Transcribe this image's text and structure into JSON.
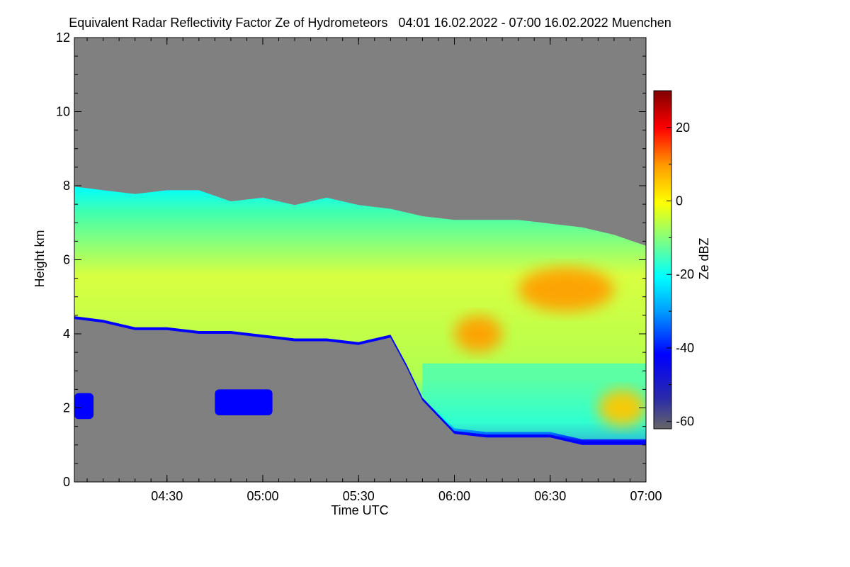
{
  "chart_data": {
    "type": "heatmap",
    "title": "Equivalent Radar Reflectivity Factor Ze of Hydrometeors   04:01 16.02.2022 - 07:00 16.02.2022 Muenchen",
    "xlabel": "Time UTC",
    "ylabel": "Height km",
    "colorbar_label": "Ze dBZ",
    "x_range": [
      "04:01",
      "07:00"
    ],
    "ylim": [
      0,
      12
    ],
    "colorbar_range": [
      -62,
      30
    ],
    "x_ticks": [
      "04:30",
      "05:00",
      "05:30",
      "06:00",
      "06:30",
      "07:00"
    ],
    "y_ticks": [
      0,
      2,
      4,
      6,
      8,
      10,
      12
    ],
    "colorbar_ticks": [
      -60,
      -40,
      -20,
      0,
      20
    ],
    "background_color": "#808080",
    "colormap": [
      "#666666",
      "#0000ff",
      "#00ffff",
      "#ffff00",
      "#ff7f00",
      "#ff0000",
      "#800000"
    ],
    "main_layer": {
      "time": [
        "04:01",
        "04:10",
        "04:20",
        "04:30",
        "04:40",
        "04:50",
        "05:00",
        "05:10",
        "05:20",
        "05:30",
        "05:40",
        "05:45",
        "05:50",
        "06:00",
        "06:10",
        "06:20",
        "06:30",
        "06:40",
        "06:50",
        "07:00"
      ],
      "top_km": [
        7.9,
        7.8,
        7.7,
        7.8,
        7.8,
        7.5,
        7.6,
        7.4,
        7.6,
        7.4,
        7.3,
        7.2,
        7.1,
        7.0,
        7.0,
        7.0,
        6.9,
        6.8,
        6.6,
        6.3
      ],
      "base_km": [
        4.4,
        4.3,
        4.1,
        4.1,
        4.0,
        4.0,
        3.9,
        3.8,
        3.8,
        3.7,
        3.9,
        3.1,
        2.2,
        1.3,
        1.2,
        1.2,
        1.2,
        1.0,
        1.0,
        1.0
      ]
    },
    "core_regions": [
      {
        "time_start": "06:00",
        "time_end": "06:15",
        "height_range_km": [
          3.5,
          4.5
        ],
        "ze_dbz": 2
      },
      {
        "time_start": "06:20",
        "time_end": "06:50",
        "height_range_km": [
          4.6,
          5.8
        ],
        "ze_dbz": 4
      },
      {
        "time_start": "06:45",
        "time_end": "07:00",
        "height_range_km": [
          1.5,
          2.5
        ],
        "ze_dbz": 0
      }
    ],
    "low_echoes": [
      {
        "time_start": "04:01",
        "time_end": "04:07",
        "height_range_km": [
          1.7,
          2.4
        ],
        "ze_dbz": -40
      },
      {
        "time_start": "04:45",
        "time_end": "05:03",
        "height_range_km": [
          1.8,
          2.5
        ],
        "ze_dbz": -45
      }
    ]
  }
}
